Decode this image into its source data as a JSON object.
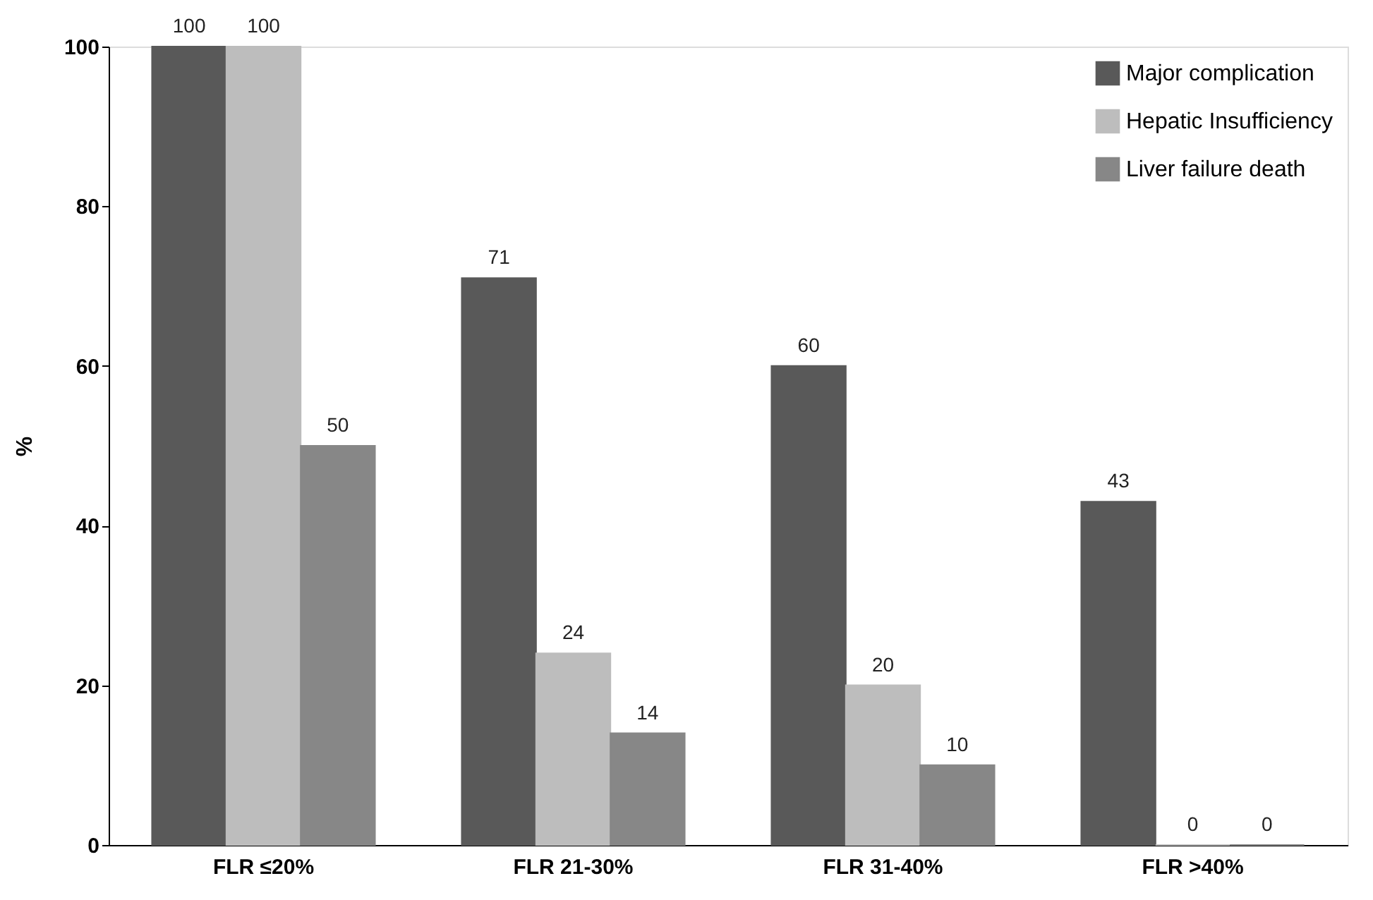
{
  "chart_data": {
    "type": "bar",
    "ylabel": "%",
    "categories": [
      "FLR ≤20%",
      "FLR 21-30%",
      "FLR 31-40%",
      "FLR >40%"
    ],
    "series": [
      {
        "name": "Major complication",
        "color": "#595959",
        "values": [
          100,
          71,
          60,
          43
        ]
      },
      {
        "name": "Hepatic Insufficiency",
        "color": "#bdbdbd",
        "values": [
          100,
          24,
          20,
          0
        ]
      },
      {
        "name": "Liver failure death",
        "color": "#878787",
        "values": [
          50,
          14,
          10,
          0
        ]
      }
    ],
    "ylim": [
      0,
      100
    ],
    "yticks": [
      0,
      20,
      40,
      60,
      80,
      100
    ],
    "grid": false,
    "legend": "top right",
    "data_labels": true
  }
}
